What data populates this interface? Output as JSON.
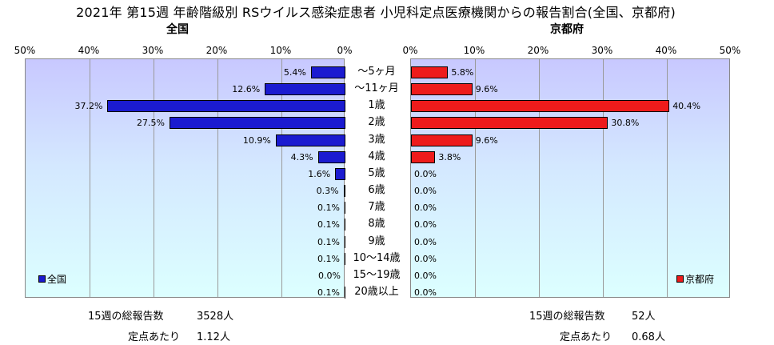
{
  "chart_data": {
    "type": "bar",
    "orientation": "horizontal-butterfly",
    "title": "2021年 第15週 年齢階級別 RSウイルス感染症患者 小児科定点医療機関からの報告割合(全国、京都府)",
    "categories": [
      "〜5ヶ月",
      "〜11ヶ月",
      "1歳",
      "2歳",
      "3歳",
      "4歳",
      "5歳",
      "6歳",
      "7歳",
      "8歳",
      "9歳",
      "10〜14歳",
      "15〜19歳",
      "20歳以上"
    ],
    "xlim": [
      0,
      50
    ],
    "x_ticks": [
      "50%",
      "40%",
      "30%",
      "20%",
      "10%",
      "0%",
      "10%",
      "20%",
      "30%",
      "40%",
      "50%"
    ],
    "left_ticks": [
      "50%",
      "40%",
      "30%",
      "20%",
      "10%",
      "0%"
    ],
    "right_ticks": [
      "0%",
      "10%",
      "20%",
      "30%",
      "40%",
      "50%"
    ],
    "series": [
      {
        "name": "全国",
        "panel_title": "全国",
        "side": "left",
        "color": "#1b1bd0",
        "values": [
          5.4,
          12.6,
          37.2,
          27.5,
          10.9,
          4.3,
          1.6,
          0.3,
          0.1,
          0.1,
          0.1,
          0.1,
          0.0,
          0.1
        ],
        "labels": [
          "5.4%",
          "12.6%",
          "37.2%",
          "27.5%",
          "10.9%",
          "4.3%",
          "1.6%",
          "0.3%",
          "0.1%",
          "0.1%",
          "0.1%",
          "0.1%",
          "0.0%",
          "0.1%"
        ]
      },
      {
        "name": "京都府",
        "panel_title": "京都府",
        "side": "right",
        "color": "#ee1b1b",
        "values": [
          5.8,
          9.6,
          40.4,
          30.8,
          9.6,
          3.8,
          0.0,
          0.0,
          0.0,
          0.0,
          0.0,
          0.0,
          0.0,
          0.0
        ],
        "labels": [
          "5.8%",
          "9.6%",
          "40.4%",
          "30.8%",
          "9.6%",
          "3.8%",
          "0.0%",
          "0.0%",
          "0.0%",
          "0.0%",
          "0.0%",
          "0.0%",
          "0.0%",
          "0.0%"
        ]
      }
    ],
    "legend": [
      "全国",
      "京都府"
    ],
    "grid": true
  },
  "footer": {
    "national": {
      "total_label": "15週の総報告数",
      "total_value": "3528人",
      "per_label": "定点あたり",
      "per_value": "1.12人"
    },
    "kyoto": {
      "total_label": "15週の総報告数",
      "total_value": "52人",
      "per_label": "定点あたり",
      "per_value": "0.68人"
    }
  }
}
